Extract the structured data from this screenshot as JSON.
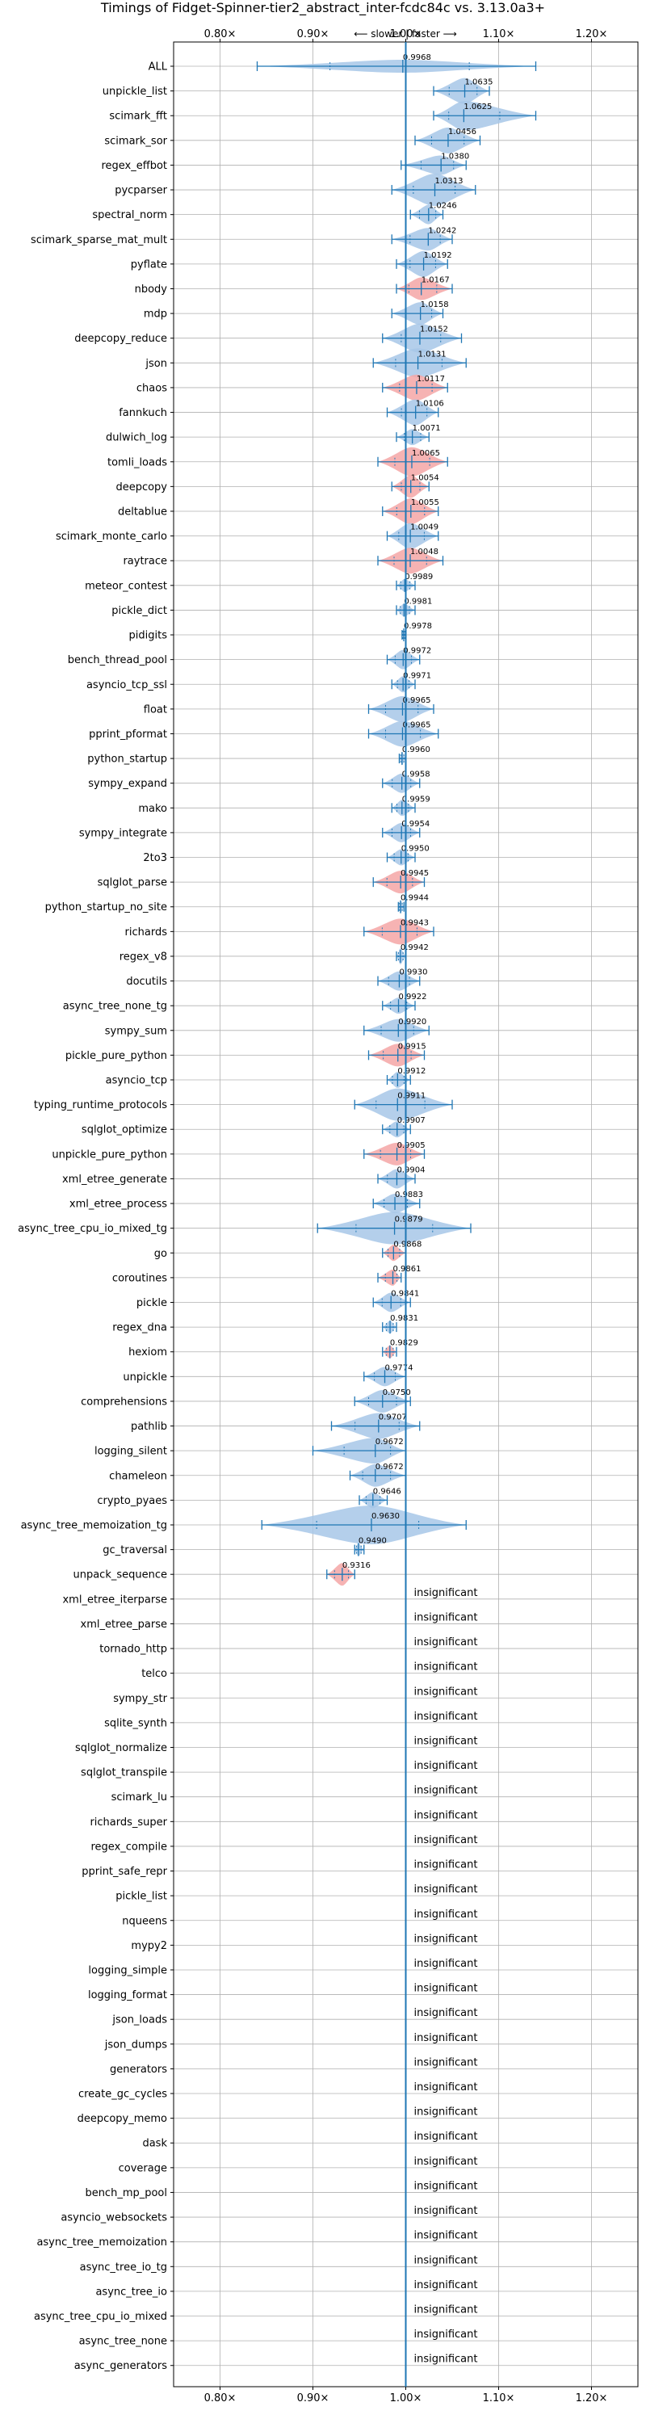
{
  "chart_data": {
    "type": "violin",
    "title": "Timings of Fidget-Spinner-tier2_abstract_inter-fcdc84c vs. 3.13.0a3+",
    "direction_note": "⟵ slower | faster ⟶",
    "xlim": [
      0.75,
      1.25
    ],
    "x_ticks": [
      0.8,
      0.9,
      1.0,
      1.1,
      1.2
    ],
    "x_tick_labels": [
      "0.80×",
      "0.90×",
      "1.00×",
      "1.10×",
      "1.20×"
    ],
    "grid": true,
    "colors": {
      "faster": "#a7c7e7",
      "slower": "#f4a6a6",
      "line": "#1f77b4",
      "grid": "#b0b0b0"
    },
    "insignificant_label": "insignificant",
    "benchmarks": [
      {
        "name": "ALL",
        "mean": 0.9968,
        "label": "0.9968",
        "lo": 0.84,
        "hi": 1.14,
        "width": 8,
        "color": "faster"
      },
      {
        "name": "unpickle_list",
        "mean": 1.0635,
        "label": "1.0635",
        "lo": 1.03,
        "hi": 1.09,
        "width": 16,
        "color": "faster"
      },
      {
        "name": "scimark_fft",
        "mean": 1.0625,
        "label": "1.0625",
        "lo": 1.03,
        "hi": 1.14,
        "width": 18,
        "color": "faster"
      },
      {
        "name": "scimark_sor",
        "mean": 1.0456,
        "label": "1.0456",
        "lo": 1.01,
        "hi": 1.08,
        "width": 16,
        "color": "faster"
      },
      {
        "name": "regex_effbot",
        "mean": 1.038,
        "label": "1.0380",
        "lo": 0.995,
        "hi": 1.065,
        "width": 12,
        "color": "faster"
      },
      {
        "name": "pycparser",
        "mean": 1.0313,
        "label": "1.0313",
        "lo": 0.985,
        "hi": 1.075,
        "width": 20,
        "color": "faster"
      },
      {
        "name": "spectral_norm",
        "mean": 1.0246,
        "label": "1.0246",
        "lo": 1.005,
        "hi": 1.04,
        "width": 12,
        "color": "faster"
      },
      {
        "name": "scimark_sparse_mat_mult",
        "mean": 1.0242,
        "label": "1.0242",
        "lo": 0.985,
        "hi": 1.05,
        "width": 14,
        "color": "faster"
      },
      {
        "name": "pyflate",
        "mean": 1.0192,
        "label": "1.0192",
        "lo": 0.99,
        "hi": 1.045,
        "width": 16,
        "color": "faster"
      },
      {
        "name": "nbody",
        "mean": 1.0167,
        "label": "1.0167",
        "lo": 0.99,
        "hi": 1.05,
        "width": 14,
        "color": "slower"
      },
      {
        "name": "mdp",
        "mean": 1.0158,
        "label": "1.0158",
        "lo": 0.985,
        "hi": 1.04,
        "width": 14,
        "color": "faster"
      },
      {
        "name": "deepcopy_reduce",
        "mean": 1.0152,
        "label": "1.0152",
        "lo": 0.975,
        "hi": 1.06,
        "width": 18,
        "color": "faster"
      },
      {
        "name": "json",
        "mean": 1.0131,
        "label": "1.0131",
        "lo": 0.965,
        "hi": 1.065,
        "width": 18,
        "color": "faster"
      },
      {
        "name": "chaos",
        "mean": 1.0117,
        "label": "1.0117",
        "lo": 0.975,
        "hi": 1.045,
        "width": 16,
        "color": "slower"
      },
      {
        "name": "fannkuch",
        "mean": 1.0106,
        "label": "1.0106",
        "lo": 0.98,
        "hi": 1.035,
        "width": 16,
        "color": "faster"
      },
      {
        "name": "dulwich_log",
        "mean": 1.0071,
        "label": "1.0071",
        "lo": 0.99,
        "hi": 1.025,
        "width": 10,
        "color": "faster"
      },
      {
        "name": "tomli_loads",
        "mean": 1.0065,
        "label": "1.0065",
        "lo": 0.97,
        "hi": 1.045,
        "width": 18,
        "color": "slower"
      },
      {
        "name": "deepcopy",
        "mean": 1.0054,
        "label": "1.0054",
        "lo": 0.985,
        "hi": 1.025,
        "width": 14,
        "color": "slower"
      },
      {
        "name": "deltablue",
        "mean": 1.0055,
        "label": "1.0055",
        "lo": 0.975,
        "hi": 1.035,
        "width": 16,
        "color": "slower"
      },
      {
        "name": "scimark_monte_carlo",
        "mean": 1.0049,
        "label": "1.0049",
        "lo": 0.98,
        "hi": 1.035,
        "width": 16,
        "color": "faster"
      },
      {
        "name": "raytrace",
        "mean": 1.0048,
        "label": "1.0048",
        "lo": 0.97,
        "hi": 1.04,
        "width": 16,
        "color": "slower"
      },
      {
        "name": "meteor_contest",
        "mean": 0.9989,
        "label": "0.9989",
        "lo": 0.99,
        "hi": 1.01,
        "width": 8,
        "color": "faster"
      },
      {
        "name": "pickle_dict",
        "mean": 0.9981,
        "label": "0.9981",
        "lo": 0.99,
        "hi": 1.01,
        "width": 8,
        "color": "faster"
      },
      {
        "name": "pidigits",
        "mean": 0.9978,
        "label": "0.9978",
        "lo": 0.996,
        "hi": 1.0,
        "width": 5,
        "color": "faster"
      },
      {
        "name": "bench_thread_pool",
        "mean": 0.9972,
        "label": "0.9972",
        "lo": 0.98,
        "hi": 1.015,
        "width": 12,
        "color": "faster"
      },
      {
        "name": "asyncio_tcp_ssl",
        "mean": 0.9971,
        "label": "0.9971",
        "lo": 0.985,
        "hi": 1.01,
        "width": 10,
        "color": "faster"
      },
      {
        "name": "float",
        "mean": 0.9965,
        "label": "0.9965",
        "lo": 0.96,
        "hi": 1.03,
        "width": 16,
        "color": "faster"
      },
      {
        "name": "pprint_pformat",
        "mean": 0.9965,
        "label": "0.9965",
        "lo": 0.96,
        "hi": 1.035,
        "width": 16,
        "color": "faster"
      },
      {
        "name": "python_startup",
        "mean": 0.996,
        "label": "0.9960",
        "lo": 0.993,
        "hi": 1.0,
        "width": 8,
        "color": "faster"
      },
      {
        "name": "sympy_expand",
        "mean": 0.9958,
        "label": "0.9958",
        "lo": 0.975,
        "hi": 1.015,
        "width": 12,
        "color": "faster"
      },
      {
        "name": "mako",
        "mean": 0.9959,
        "label": "0.9959",
        "lo": 0.985,
        "hi": 1.01,
        "width": 10,
        "color": "faster"
      },
      {
        "name": "sympy_integrate",
        "mean": 0.9954,
        "label": "0.9954",
        "lo": 0.975,
        "hi": 1.015,
        "width": 12,
        "color": "faster"
      },
      {
        "name": "2to3",
        "mean": 0.995,
        "label": "0.9950",
        "lo": 0.98,
        "hi": 1.01,
        "width": 10,
        "color": "faster"
      },
      {
        "name": "sqlglot_parse",
        "mean": 0.9945,
        "label": "0.9945",
        "lo": 0.965,
        "hi": 1.02,
        "width": 14,
        "color": "slower"
      },
      {
        "name": "python_startup_no_site",
        "mean": 0.9944,
        "label": "0.9944",
        "lo": 0.992,
        "hi": 0.998,
        "width": 8,
        "color": "faster"
      },
      {
        "name": "richards",
        "mean": 0.9943,
        "label": "0.9943",
        "lo": 0.955,
        "hi": 1.03,
        "width": 16,
        "color": "slower"
      },
      {
        "name": "regex_v8",
        "mean": 0.9942,
        "label": "0.9942",
        "lo": 0.99,
        "hi": 1.0,
        "width": 10,
        "color": "faster"
      },
      {
        "name": "docutils",
        "mean": 0.993,
        "label": "0.9930",
        "lo": 0.97,
        "hi": 1.015,
        "width": 12,
        "color": "faster"
      },
      {
        "name": "async_tree_none_tg",
        "mean": 0.9922,
        "label": "0.9922",
        "lo": 0.975,
        "hi": 1.01,
        "width": 10,
        "color": "faster"
      },
      {
        "name": "sympy_sum",
        "mean": 0.992,
        "label": "0.9920",
        "lo": 0.955,
        "hi": 1.025,
        "width": 14,
        "color": "faster"
      },
      {
        "name": "pickle_pure_python",
        "mean": 0.9915,
        "label": "0.9915",
        "lo": 0.96,
        "hi": 1.02,
        "width": 14,
        "color": "slower"
      },
      {
        "name": "asyncio_tcp",
        "mean": 0.9912,
        "label": "0.9912",
        "lo": 0.98,
        "hi": 1.005,
        "width": 10,
        "color": "faster"
      },
      {
        "name": "typing_runtime_protocols",
        "mean": 0.9911,
        "label": "0.9911",
        "lo": 0.945,
        "hi": 1.05,
        "width": 20,
        "color": "faster"
      },
      {
        "name": "sqlglot_optimize",
        "mean": 0.9907,
        "label": "0.9907",
        "lo": 0.975,
        "hi": 1.005,
        "width": 10,
        "color": "faster"
      },
      {
        "name": "unpickle_pure_python",
        "mean": 0.9905,
        "label": "0.9905",
        "lo": 0.955,
        "hi": 1.02,
        "width": 14,
        "color": "slower"
      },
      {
        "name": "xml_etree_generate",
        "mean": 0.9904,
        "label": "0.9904",
        "lo": 0.97,
        "hi": 1.01,
        "width": 12,
        "color": "faster"
      },
      {
        "name": "xml_etree_process",
        "mean": 0.9883,
        "label": "0.9883",
        "lo": 0.965,
        "hi": 1.015,
        "width": 12,
        "color": "faster"
      },
      {
        "name": "async_tree_cpu_io_mixed_tg",
        "mean": 0.9879,
        "label": "0.9879",
        "lo": 0.905,
        "hi": 1.07,
        "width": 20,
        "color": "faster"
      },
      {
        "name": "go",
        "mean": 0.9868,
        "label": "0.9868",
        "lo": 0.975,
        "hi": 1.0,
        "width": 10,
        "color": "slower"
      },
      {
        "name": "coroutines",
        "mean": 0.9861,
        "label": "0.9861",
        "lo": 0.97,
        "hi": 0.995,
        "width": 10,
        "color": "slower"
      },
      {
        "name": "pickle",
        "mean": 0.9841,
        "label": "0.9841",
        "lo": 0.965,
        "hi": 1.005,
        "width": 12,
        "color": "faster"
      },
      {
        "name": "regex_dna",
        "mean": 0.9831,
        "label": "0.9831",
        "lo": 0.975,
        "hi": 0.99,
        "width": 8,
        "color": "faster"
      },
      {
        "name": "hexiom",
        "mean": 0.9829,
        "label": "0.9829",
        "lo": 0.975,
        "hi": 0.99,
        "width": 8,
        "color": "slower"
      },
      {
        "name": "unpickle",
        "mean": 0.9774,
        "label": "0.9774",
        "lo": 0.955,
        "hi": 1.0,
        "width": 12,
        "color": "faster"
      },
      {
        "name": "comprehensions",
        "mean": 0.975,
        "label": "0.9750",
        "lo": 0.945,
        "hi": 1.005,
        "width": 14,
        "color": "faster"
      },
      {
        "name": "pathlib",
        "mean": 0.9707,
        "label": "0.9707",
        "lo": 0.92,
        "hi": 1.015,
        "width": 16,
        "color": "faster"
      },
      {
        "name": "logging_silent",
        "mean": 0.9672,
        "label": "0.9672",
        "lo": 0.9,
        "hi": 1.0,
        "width": 16,
        "color": "faster"
      },
      {
        "name": "chameleon",
        "mean": 0.9672,
        "label": "0.9672",
        "lo": 0.94,
        "hi": 1.0,
        "width": 14,
        "color": "faster"
      },
      {
        "name": "crypto_pyaes",
        "mean": 0.9646,
        "label": "0.9646",
        "lo": 0.95,
        "hi": 0.98,
        "width": 10,
        "color": "faster"
      },
      {
        "name": "async_tree_memoization_tg",
        "mean": 0.963,
        "label": "0.9630",
        "lo": 0.845,
        "hi": 1.065,
        "width": 24,
        "color": "faster"
      },
      {
        "name": "gc_traversal",
        "mean": 0.949,
        "label": "0.9490",
        "lo": 0.945,
        "hi": 0.955,
        "width": 8,
        "color": "faster"
      },
      {
        "name": "unpack_sequence",
        "mean": 0.9316,
        "label": "0.9316",
        "lo": 0.915,
        "hi": 0.945,
        "width": 14,
        "color": "slower"
      },
      {
        "name": "xml_etree_iterparse",
        "insignificant": true
      },
      {
        "name": "xml_etree_parse",
        "insignificant": true
      },
      {
        "name": "tornado_http",
        "insignificant": true
      },
      {
        "name": "telco",
        "insignificant": true
      },
      {
        "name": "sympy_str",
        "insignificant": true
      },
      {
        "name": "sqlite_synth",
        "insignificant": true
      },
      {
        "name": "sqlglot_normalize",
        "insignificant": true
      },
      {
        "name": "sqlglot_transpile",
        "insignificant": true
      },
      {
        "name": "scimark_lu",
        "insignificant": true
      },
      {
        "name": "richards_super",
        "insignificant": true
      },
      {
        "name": "regex_compile",
        "insignificant": true
      },
      {
        "name": "pprint_safe_repr",
        "insignificant": true
      },
      {
        "name": "pickle_list",
        "insignificant": true
      },
      {
        "name": "nqueens",
        "insignificant": true
      },
      {
        "name": "mypy2",
        "insignificant": true
      },
      {
        "name": "logging_simple",
        "insignificant": true
      },
      {
        "name": "logging_format",
        "insignificant": true
      },
      {
        "name": "json_loads",
        "insignificant": true
      },
      {
        "name": "json_dumps",
        "insignificant": true
      },
      {
        "name": "generators",
        "insignificant": true
      },
      {
        "name": "create_gc_cycles",
        "insignificant": true
      },
      {
        "name": "deepcopy_memo",
        "insignificant": true
      },
      {
        "name": "dask",
        "insignificant": true
      },
      {
        "name": "coverage",
        "insignificant": true
      },
      {
        "name": "bench_mp_pool",
        "insignificant": true
      },
      {
        "name": "asyncio_websockets",
        "insignificant": true
      },
      {
        "name": "async_tree_memoization",
        "insignificant": true
      },
      {
        "name": "async_tree_io_tg",
        "insignificant": true
      },
      {
        "name": "async_tree_io",
        "insignificant": true
      },
      {
        "name": "async_tree_cpu_io_mixed",
        "insignificant": true
      },
      {
        "name": "async_tree_none",
        "insignificant": true
      },
      {
        "name": "async_generators",
        "insignificant": true
      }
    ]
  }
}
